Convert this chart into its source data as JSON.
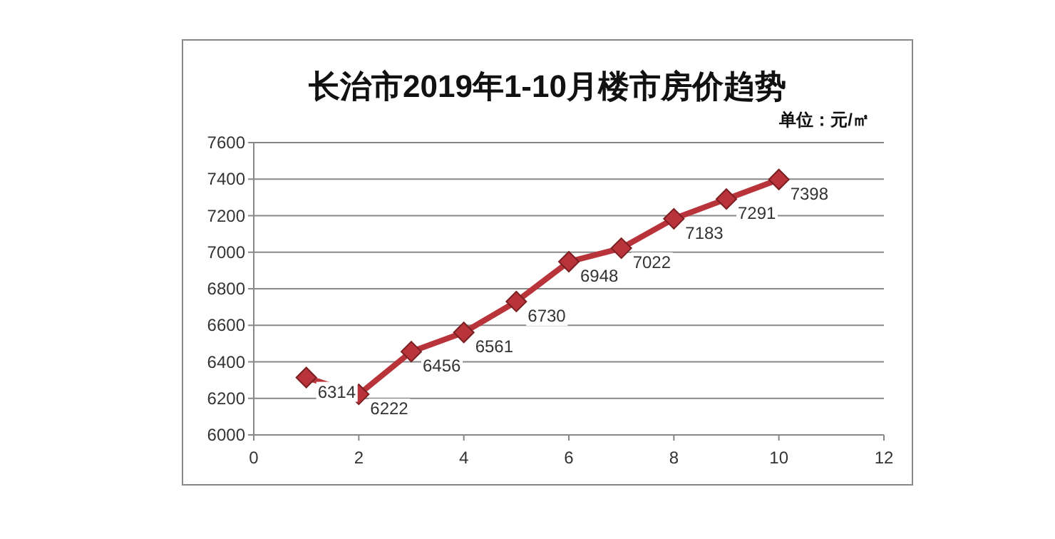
{
  "chart_data": {
    "type": "line",
    "title": "长治市2019年1-10月楼市房价趋势",
    "annotations": [
      "单位：元/㎡"
    ],
    "x": [
      1,
      2,
      3,
      4,
      5,
      6,
      7,
      8,
      9,
      10
    ],
    "series": [
      {
        "color": "#b8333a",
        "values": [
          6314,
          6222,
          6456,
          6561,
          6730,
          6948,
          7022,
          7183,
          7291,
          7398
        ]
      }
    ],
    "xlim": [
      0,
      12
    ],
    "xticks": [
      0,
      2,
      4,
      6,
      8,
      10,
      12
    ],
    "ylim": [
      6000,
      7600
    ],
    "yticks": [
      6000,
      6200,
      6400,
      6600,
      6800,
      7000,
      7200,
      7400,
      7600
    ],
    "grid": "y",
    "marker": "diamond",
    "line_style": "solid",
    "data_labels": true
  }
}
